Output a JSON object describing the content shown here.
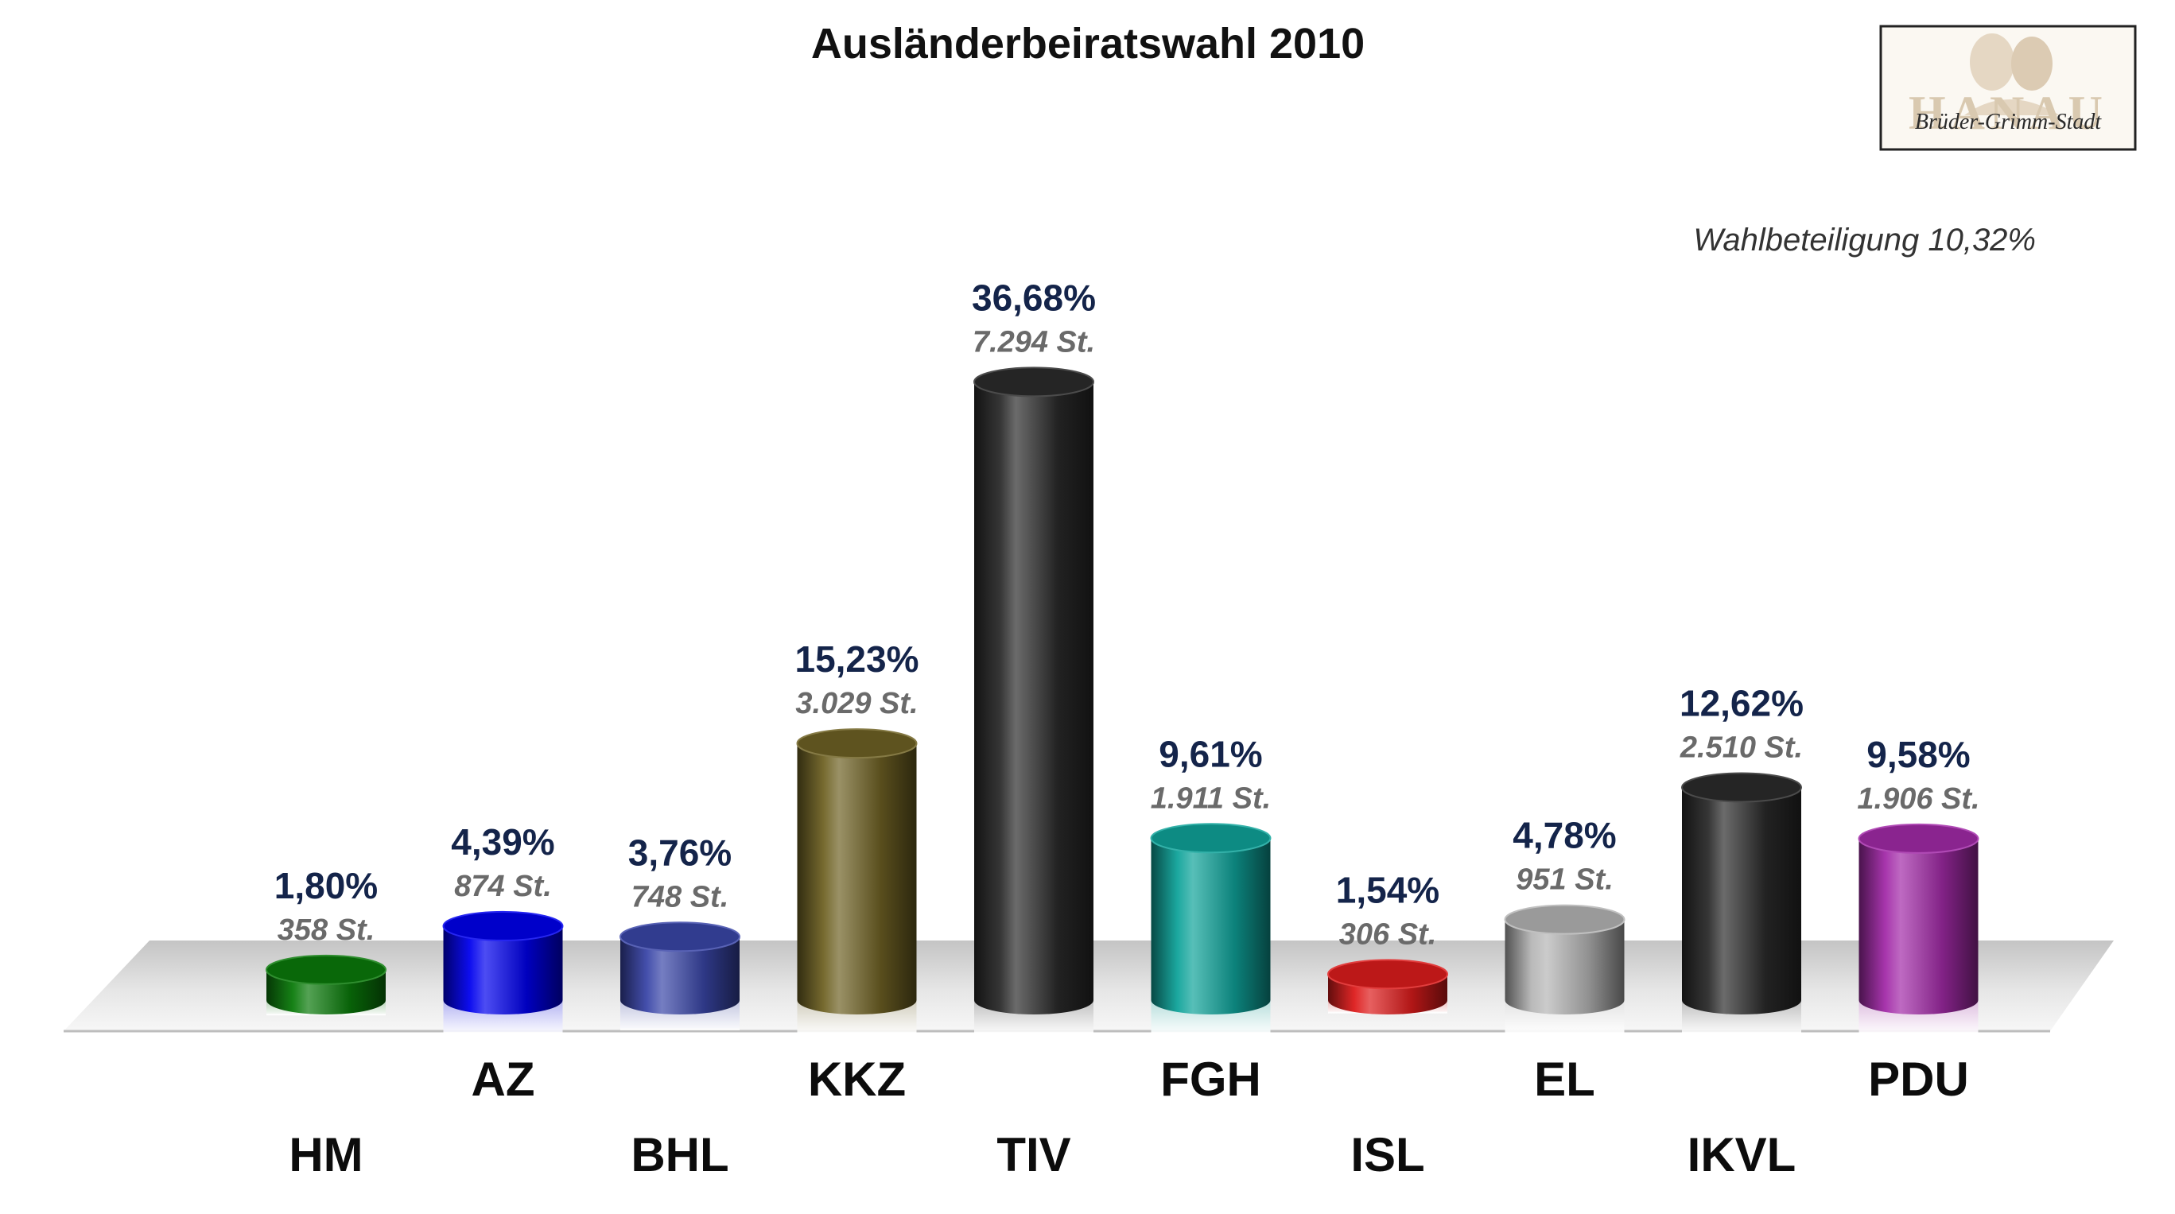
{
  "chart_data": {
    "type": "bar",
    "title": "Ausländerbeiratswahl 2010",
    "turnout": "Wahlbeteiligung 10,32%",
    "unit": "%",
    "ylim": [
      0,
      40
    ],
    "categories": [
      "HM",
      "AZ",
      "BHL",
      "KKZ",
      "TIV",
      "FGH",
      "ISL",
      "EL",
      "IKVL",
      "PDU"
    ],
    "values": [
      1.8,
      4.39,
      3.76,
      15.23,
      36.68,
      9.61,
      1.54,
      4.78,
      12.62,
      9.58
    ],
    "votes": [
      358,
      874,
      748,
      3029,
      7294,
      1911,
      306,
      951,
      2510,
      1906
    ],
    "percent_labels": [
      "1,80%",
      "4,39%",
      "3,76%",
      "15,23%",
      "36,68%",
      "9,61%",
      "1,54%",
      "4,78%",
      "12,62%",
      "9,58%"
    ],
    "vote_labels": [
      "358 St.",
      "874 St.",
      "748 St.",
      "3.029 St.",
      "7.294 St.",
      "1.911 St.",
      "306 St.",
      "951 St.",
      "2.510 St.",
      "1.906 St."
    ],
    "colors": [
      "#0a7a0a",
      "#0000ee",
      "#3a46a8",
      "#6f6224",
      "#2b2b2b",
      "#0fa39a",
      "#dd1c1c",
      "#b5b5b5",
      "#2b2b2b",
      "#a22aa8"
    ]
  },
  "logo": {
    "wordmark": "HANAU",
    "caption": "Brüder-Grimm-Stadt"
  }
}
